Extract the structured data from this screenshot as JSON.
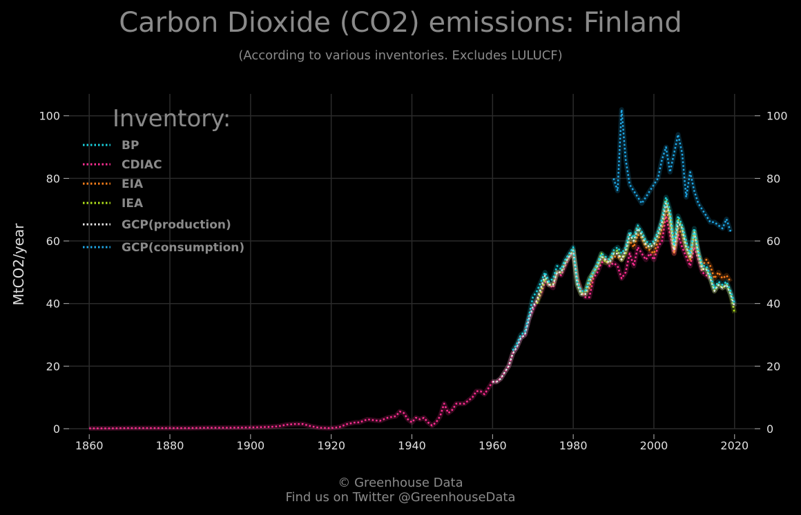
{
  "chart_data": {
    "type": "line",
    "title": "Carbon Dioxide (CO2) emissions: Finland",
    "subtitle": "(According to various inventories. Excludes LULUCF)",
    "xlabel": "",
    "ylabel": "MtCO2/year",
    "xlim": [
      1855,
      2025
    ],
    "ylim": [
      0,
      107
    ],
    "x_ticks": [
      1860,
      1880,
      1900,
      1920,
      1940,
      1960,
      1980,
      2000,
      2020
    ],
    "y_ticks": [
      0,
      20,
      40,
      60,
      80,
      100
    ],
    "grid": true,
    "legend_title": "Inventory:",
    "legend_position": "top-left",
    "series": [
      {
        "name": "GCP(consumption)",
        "color": "#1fa8e8",
        "x": [
          1990,
          1991,
          1992,
          1993,
          1994,
          1995,
          1996,
          1997,
          1998,
          1999,
          2000,
          2001,
          2002,
          2003,
          2004,
          2005,
          2006,
          2007,
          2008,
          2009,
          2010,
          2011,
          2012,
          2013,
          2014,
          2015,
          2016,
          2017,
          2018,
          2019
        ],
        "y": [
          80,
          76,
          102,
          86,
          78,
          76,
          74,
          72,
          74,
          76,
          78,
          80,
          86,
          90,
          82,
          88,
          94,
          88,
          74,
          82,
          76,
          72,
          70,
          68,
          66,
          66,
          65,
          64,
          67,
          63
        ]
      },
      {
        "name": "CDIAC",
        "color": "#ff2e93",
        "x": [
          1860,
          1865,
          1870,
          1875,
          1880,
          1885,
          1890,
          1895,
          1900,
          1903,
          1905,
          1907,
          1909,
          1911,
          1913,
          1915,
          1917,
          1919,
          1920,
          1922,
          1924,
          1926,
          1927,
          1929,
          1930,
          1932,
          1934,
          1936,
          1937,
          1938,
          1939,
          1940,
          1941,
          1942,
          1943,
          1944,
          1945,
          1946,
          1947,
          1948,
          1949,
          1950,
          1951,
          1952,
          1953,
          1954,
          1955,
          1956,
          1957,
          1958,
          1959,
          1960,
          1961,
          1962,
          1963,
          1964,
          1965,
          1966,
          1967,
          1968,
          1969,
          1970,
          1971,
          1972,
          1973,
          1974,
          1975,
          1976,
          1977,
          1978,
          1979,
          1980,
          1981,
          1982,
          1983,
          1984,
          1985,
          1986,
          1987,
          1988,
          1989,
          1990,
          1991,
          1992,
          1993,
          1994,
          1995,
          1996,
          1997,
          1998,
          1999,
          2000,
          2001,
          2002,
          2003,
          2004,
          2005,
          2006,
          2007,
          2008,
          2009,
          2010,
          2011,
          2012,
          2013,
          2014
        ],
        "y": [
          0.1,
          0.1,
          0.2,
          0.2,
          0.2,
          0.2,
          0.3,
          0.3,
          0.4,
          0.5,
          0.6,
          0.8,
          1.3,
          1.5,
          1.5,
          0.8,
          0.3,
          0.2,
          0.2,
          0.5,
          1.5,
          2,
          2,
          3,
          2.8,
          2.5,
          3.5,
          4,
          5.5,
          5,
          3,
          2,
          3.5,
          3,
          3.5,
          2,
          1,
          2,
          4,
          8,
          5,
          6,
          8,
          8,
          8,
          9,
          10,
          12,
          12,
          11,
          13,
          15,
          15,
          16,
          18,
          20,
          24,
          26,
          29,
          30,
          35,
          38,
          41,
          43,
          47,
          46,
          45,
          50,
          49,
          52,
          55,
          56,
          48,
          44,
          42,
          42,
          48,
          50,
          53,
          54,
          52,
          53,
          52,
          48,
          50,
          56,
          52,
          58,
          56,
          54,
          56,
          54,
          58,
          60,
          68,
          62,
          56,
          62,
          58,
          55,
          52,
          58,
          54,
          50,
          49,
          48
        ]
      },
      {
        "name": "EIA",
        "color": "#ff7f1a",
        "x": [
          1980,
          1981,
          1982,
          1983,
          1984,
          1985,
          1986,
          1987,
          1988,
          1989,
          1990,
          1991,
          1992,
          1993,
          1994,
          1995,
          1996,
          1997,
          1998,
          1999,
          2000,
          2001,
          2002,
          2003,
          2004,
          2005,
          2006,
          2007,
          2008,
          2009,
          2010,
          2011,
          2012,
          2013,
          2014,
          2015,
          2016,
          2017,
          2018,
          2019
        ],
        "y": [
          57,
          48,
          44,
          43,
          45,
          50,
          52,
          55,
          54,
          53,
          55,
          55,
          54,
          57,
          60,
          58,
          62,
          61,
          58,
          57,
          56,
          60,
          64,
          70,
          66,
          56,
          64,
          62,
          58,
          54,
          62,
          56,
          52,
          54,
          52,
          48,
          50,
          48,
          49,
          47
        ]
      },
      {
        "name": "IEA",
        "color": "#b5e61d",
        "x": [
          1971,
          1972,
          1973,
          1974,
          1975,
          1976,
          1977,
          1978,
          1979,
          1980,
          1981,
          1982,
          1983,
          1984,
          1985,
          1986,
          1987,
          1988,
          1989,
          1990,
          1991,
          1992,
          1993,
          1994,
          1995,
          1996,
          1997,
          1998,
          1999,
          2000,
          2001,
          2002,
          2003,
          2004,
          2005,
          2006,
          2007,
          2008,
          2009,
          2010,
          2011,
          2012,
          2013,
          2014,
          2015,
          2016,
          2017,
          2018,
          2019,
          2020
        ],
        "y": [
          40,
          44,
          48,
          46,
          46,
          50,
          50,
          53,
          55,
          57,
          46,
          43,
          44,
          48,
          50,
          52,
          56,
          53,
          54,
          56,
          57,
          54,
          56,
          62,
          60,
          64,
          62,
          59,
          58,
          59,
          62,
          66,
          73,
          68,
          58,
          67,
          64,
          58,
          55,
          63,
          56,
          51,
          51,
          48,
          44,
          46,
          45,
          46,
          43,
          37
        ]
      },
      {
        "name": "GCP(production)",
        "color": "#e8e8e8",
        "x": [
          1960,
          1961,
          1962,
          1963,
          1964,
          1965,
          1966,
          1967,
          1968,
          1969,
          1970,
          1971,
          1972,
          1973,
          1974,
          1975,
          1976,
          1977,
          1978,
          1979,
          1980,
          1981,
          1982,
          1983,
          1984,
          1985,
          1986,
          1987,
          1988,
          1989,
          1990,
          1991,
          1992,
          1993,
          1994,
          1995,
          1996,
          1997,
          1998,
          1999,
          2000,
          2001,
          2002,
          2003,
          2004,
          2005,
          2006,
          2007,
          2008,
          2009,
          2010,
          2011,
          2012,
          2013,
          2014,
          2015,
          2016,
          2017,
          2018,
          2019,
          2020
        ],
        "y": [
          15,
          15,
          16,
          18,
          20,
          24,
          26,
          29,
          30,
          35,
          39,
          41,
          45,
          49,
          46,
          46,
          50,
          50,
          53,
          55,
          57,
          46,
          43,
          43,
          47,
          50,
          52,
          55,
          54,
          53,
          56,
          56,
          54,
          57,
          62,
          60,
          64,
          62,
          59,
          58,
          59,
          62,
          66,
          72,
          68,
          57,
          66,
          64,
          58,
          55,
          63,
          56,
          51,
          51,
          48,
          44,
          46,
          45,
          46,
          43,
          39
        ]
      },
      {
        "name": "BP",
        "color": "#19d3e0",
        "x": [
          1965,
          1966,
          1967,
          1968,
          1969,
          1970,
          1971,
          1972,
          1973,
          1974,
          1975,
          1976,
          1977,
          1978,
          1979,
          1980,
          1981,
          1982,
          1983,
          1984,
          1985,
          1986,
          1987,
          1988,
          1989,
          1990,
          1991,
          1992,
          1993,
          1994,
          1995,
          1996,
          1997,
          1998,
          1999,
          2000,
          2001,
          2002,
          2003,
          2004,
          2005,
          2006,
          2007,
          2008,
          2009,
          2010,
          2011,
          2012,
          2013,
          2014,
          2015,
          2016,
          2017,
          2018,
          2019,
          2020
        ],
        "y": [
          25,
          27,
          30,
          31,
          36,
          42,
          44,
          47,
          50,
          47,
          48,
          52,
          51,
          54,
          56,
          58,
          47,
          44,
          44,
          48,
          50,
          53,
          56,
          55,
          54,
          57,
          58,
          56,
          58,
          63,
          61,
          65,
          63,
          60,
          59,
          60,
          63,
          67,
          74,
          70,
          59,
          68,
          65,
          60,
          56,
          64,
          57,
          52,
          52,
          49,
          45,
          47,
          46,
          47,
          44,
          40
        ]
      }
    ]
  },
  "legend_entries": [
    "BP",
    "CDIAC",
    "EIA",
    "IEA",
    "GCP(production)",
    "GCP(consumption)"
  ],
  "footer": {
    "line1": "© Greenhouse Data",
    "line2": "Find us on Twitter @GreenhouseData"
  }
}
